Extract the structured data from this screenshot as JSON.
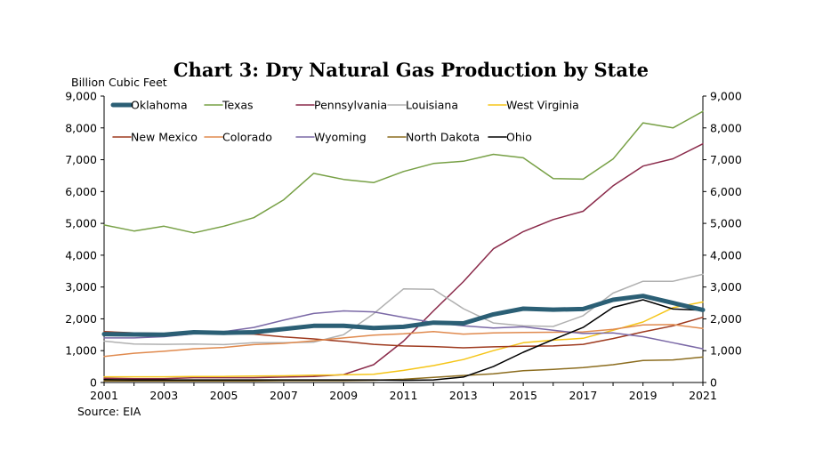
{
  "chart_data": {
    "type": "line",
    "title": "Chart 3: Dry Natural Gas Production by State",
    "ylabel": "Billion Cubic Feet",
    "source": "Source: EIA",
    "ylim": [
      0,
      9000
    ],
    "yticks": [
      "0",
      "1,000",
      "2,000",
      "3,000",
      "4,000",
      "5,000",
      "6,000",
      "7,000",
      "8,000",
      "9,000"
    ],
    "yticks_right": [
      "0",
      "1,000",
      "2,000",
      "3,000",
      "4,000",
      "5,000",
      "6,000",
      "7,000",
      "8,000",
      "9,000"
    ],
    "xticks": [
      "2001",
      "2003",
      "2005",
      "2007",
      "2009",
      "2011",
      "2013",
      "2015",
      "2017",
      "2019",
      "2021"
    ],
    "x": [
      2001,
      2002,
      2003,
      2004,
      2005,
      2006,
      2007,
      2008,
      2009,
      2010,
      2011,
      2012,
      2013,
      2014,
      2015,
      2016,
      2017,
      2018,
      2019,
      2020,
      2021
    ],
    "grid": false,
    "legend_position": "top",
    "series": [
      {
        "name": "Oklahoma",
        "color": "#2b5f75",
        "width": 5,
        "values": [
          1520,
          1510,
          1500,
          1580,
          1560,
          1580,
          1680,
          1780,
          1780,
          1710,
          1750,
          1880,
          1860,
          2140,
          2320,
          2290,
          2310,
          2600,
          2720,
          2500,
          2280
        ]
      },
      {
        "name": "Texas",
        "color": "#77a045",
        "width": 1.5,
        "values": [
          4950,
          4760,
          4910,
          4700,
          4910,
          5180,
          5740,
          6570,
          6380,
          6280,
          6630,
          6880,
          6950,
          7170,
          7060,
          6410,
          6390,
          7020,
          8160,
          8000,
          8520
        ]
      },
      {
        "name": "Pennsylvania",
        "color": "#8a2a4a",
        "width": 1.5,
        "values": [
          130,
          120,
          120,
          150,
          150,
          150,
          170,
          190,
          250,
          560,
          1300,
          2250,
          3170,
          4200,
          4740,
          5120,
          5380,
          6180,
          6800,
          7030,
          7500
        ]
      },
      {
        "name": "Louisiana",
        "color": "#b0b0b0",
        "width": 1.5,
        "values": [
          1300,
          1210,
          1200,
          1210,
          1190,
          1250,
          1250,
          1270,
          1500,
          2160,
          2940,
          2930,
          2320,
          1870,
          1780,
          1760,
          2100,
          2810,
          3180,
          3180,
          3400
        ]
      },
      {
        "name": "West Virginia",
        "color": "#f5c518",
        "width": 1.5,
        "values": [
          180,
          180,
          180,
          190,
          190,
          200,
          210,
          230,
          240,
          260,
          380,
          530,
          720,
          1000,
          1250,
          1330,
          1390,
          1640,
          1900,
          2350,
          2530
        ]
      },
      {
        "name": "New Mexico",
        "color": "#9e3a1f",
        "width": 1.5,
        "values": [
          1600,
          1560,
          1540,
          1530,
          1540,
          1520,
          1430,
          1370,
          1290,
          1200,
          1150,
          1130,
          1090,
          1120,
          1140,
          1150,
          1200,
          1380,
          1590,
          1780,
          2050
        ]
      },
      {
        "name": "Colorado",
        "color": "#e08a4e",
        "width": 1.5,
        "values": [
          820,
          920,
          980,
          1060,
          1100,
          1190,
          1230,
          1310,
          1400,
          1490,
          1530,
          1600,
          1520,
          1560,
          1570,
          1580,
          1590,
          1670,
          1810,
          1820,
          1700
        ]
      },
      {
        "name": "Wyoming",
        "color": "#7a68a6",
        "width": 1.5,
        "values": [
          1400,
          1400,
          1440,
          1530,
          1600,
          1730,
          1960,
          2170,
          2250,
          2220,
          2050,
          1880,
          1780,
          1710,
          1750,
          1640,
          1540,
          1560,
          1440,
          1250,
          1060
        ]
      },
      {
        "name": "North Dakota",
        "color": "#8c6d1f",
        "width": 1.5,
        "values": [
          50,
          50,
          50,
          50,
          50,
          50,
          60,
          60,
          60,
          70,
          100,
          160,
          220,
          270,
          370,
          410,
          470,
          560,
          690,
          710,
          800
        ]
      },
      {
        "name": "Ohio",
        "color": "#000000",
        "width": 1.5,
        "values": [
          90,
          80,
          80,
          80,
          80,
          80,
          80,
          80,
          80,
          80,
          70,
          80,
          170,
          500,
          950,
          1350,
          1730,
          2360,
          2600,
          2310,
          2270
        ]
      }
    ]
  }
}
